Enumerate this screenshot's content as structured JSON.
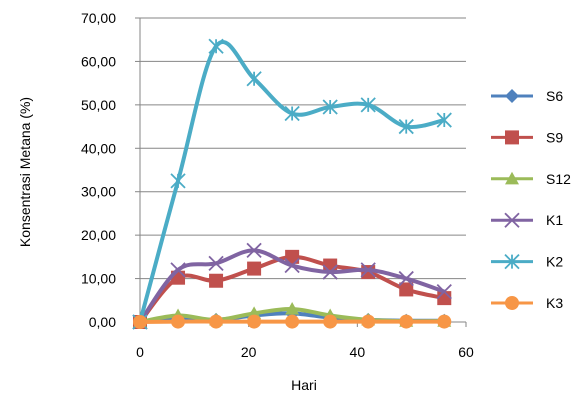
{
  "chart_data": {
    "type": "line",
    "title": "",
    "xlabel": "Hari",
    "ylabel": "Konsentrasi Metana (%)",
    "xlim": [
      0,
      60
    ],
    "ylim": [
      0,
      70
    ],
    "xticks": [
      "0",
      "20",
      "40",
      "60"
    ],
    "yticks": [
      "0,00",
      "10,00",
      "20,00",
      "30,00",
      "40,00",
      "50,00",
      "60,00",
      "70,00"
    ],
    "grid": "horizontal",
    "legend_position": "right",
    "x": [
      0,
      7,
      14,
      21,
      28,
      35,
      42,
      49,
      56
    ],
    "series": [
      {
        "name": "S6",
        "color": "#4F81BD",
        "marker": "diamond",
        "values": [
          0,
          0.8,
          0.5,
          1.5,
          2.0,
          1.0,
          0.5,
          0.3,
          0.3
        ]
      },
      {
        "name": "S9",
        "color": "#C0504D",
        "marker": "square",
        "values": [
          0,
          10.2,
          9.5,
          12.3,
          15.0,
          13.0,
          11.5,
          7.5,
          5.5
        ]
      },
      {
        "name": "S12",
        "color": "#9BBB59",
        "marker": "triangle",
        "values": [
          0,
          1.5,
          0.5,
          2.0,
          3.0,
          1.5,
          0.5,
          0.2,
          0.2
        ]
      },
      {
        "name": "K1",
        "color": "#8064A2",
        "marker": "x",
        "values": [
          0,
          12.0,
          13.5,
          16.5,
          13.0,
          11.5,
          12.0,
          10.0,
          7.0
        ]
      },
      {
        "name": "K2",
        "color": "#4BACC6",
        "marker": "star",
        "values": [
          0,
          32.5,
          63.5,
          56.0,
          48.0,
          49.5,
          50.0,
          45.0,
          46.5
        ]
      },
      {
        "name": "K3",
        "color": "#F79646",
        "marker": "circle",
        "values": [
          0,
          0.1,
          0.1,
          0.1,
          0.1,
          0.1,
          0.1,
          0.1,
          0.1
        ]
      }
    ]
  }
}
